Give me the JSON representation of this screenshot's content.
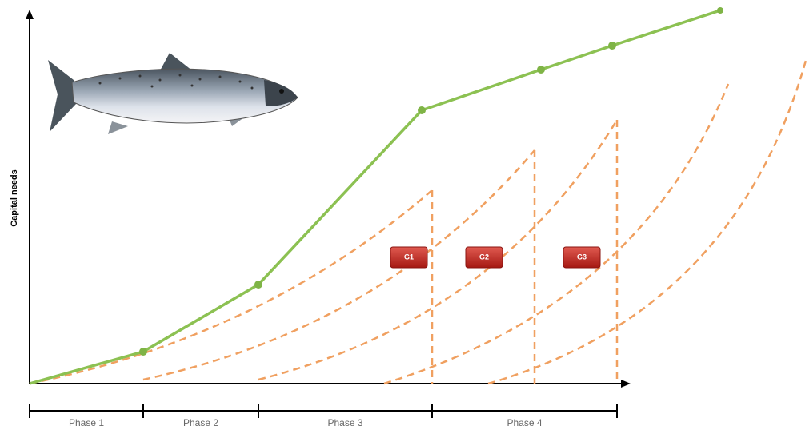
{
  "y_axis_label": "Capital needs",
  "phases": [
    "Phase 1",
    "Phase 2",
    "Phase 3",
    "Phase 4"
  ],
  "badges": [
    "G1",
    "G2",
    "G3"
  ]
}
